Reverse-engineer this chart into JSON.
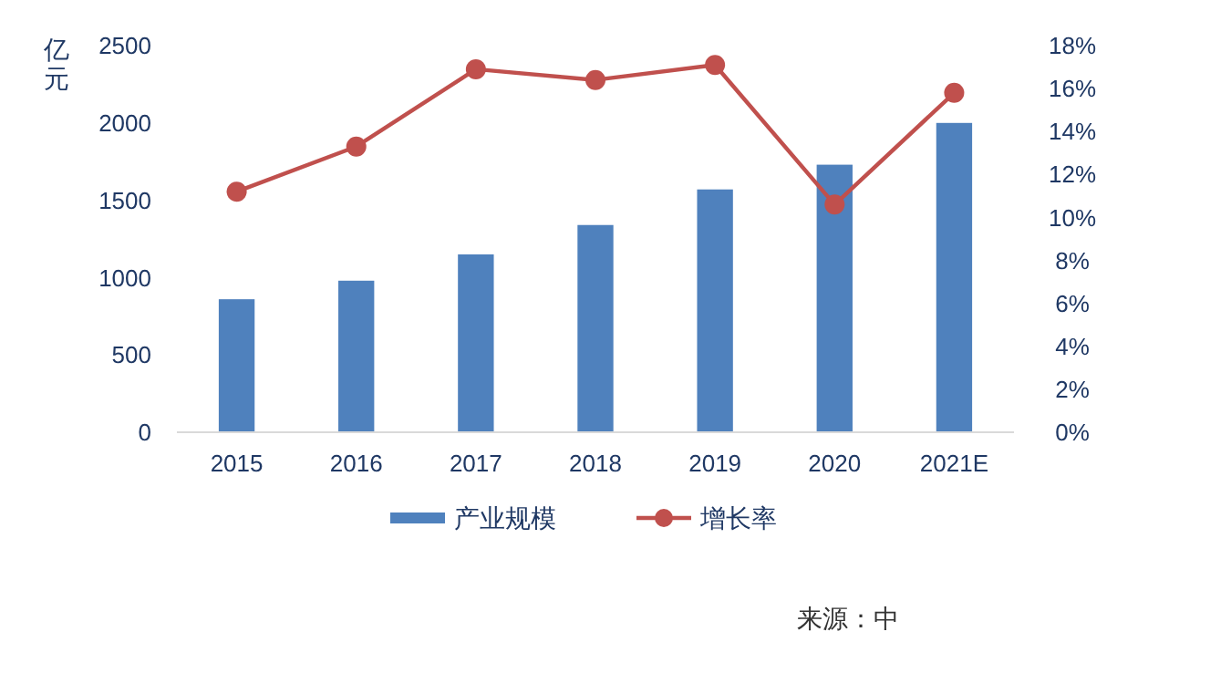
{
  "chart_data": {
    "type": "bar",
    "ylabel": "亿元",
    "categories": [
      "2015",
      "2016",
      "2017",
      "2018",
      "2019",
      "2020",
      "2021E"
    ],
    "series": [
      {
        "name": "产业规模",
        "color": "#4f81bd",
        "values": [
          860,
          980,
          1150,
          1340,
          1570,
          1730,
          2000
        ]
      },
      {
        "name": "增长率",
        "type": "line",
        "axis": "y2",
        "color": "#c0504d",
        "marker": "circle",
        "values": [
          11.2,
          13.3,
          16.9,
          16.4,
          17.1,
          10.6,
          15.8
        ]
      }
    ],
    "ylim": [
      0,
      2500
    ],
    "yticks": [
      0,
      500,
      1000,
      1500,
      2000,
      2500
    ],
    "y2lim": [
      0,
      18
    ],
    "y2ticks": [
      {
        "value": 0,
        "label": "0%"
      },
      {
        "value": 2,
        "label": "2%"
      },
      {
        "value": 4,
        "label": "4%"
      },
      {
        "value": 6,
        "label": "6%"
      },
      {
        "value": 8,
        "label": "8%"
      },
      {
        "value": 10,
        "label": "10%"
      },
      {
        "value": 12,
        "label": "12%"
      },
      {
        "value": 14,
        "label": "14%"
      },
      {
        "value": 16,
        "label": "16%"
      },
      {
        "value": 18,
        "label": "18%"
      }
    ],
    "legend": "bottom",
    "grid": false,
    "annotations": [
      "来源：中"
    ]
  }
}
